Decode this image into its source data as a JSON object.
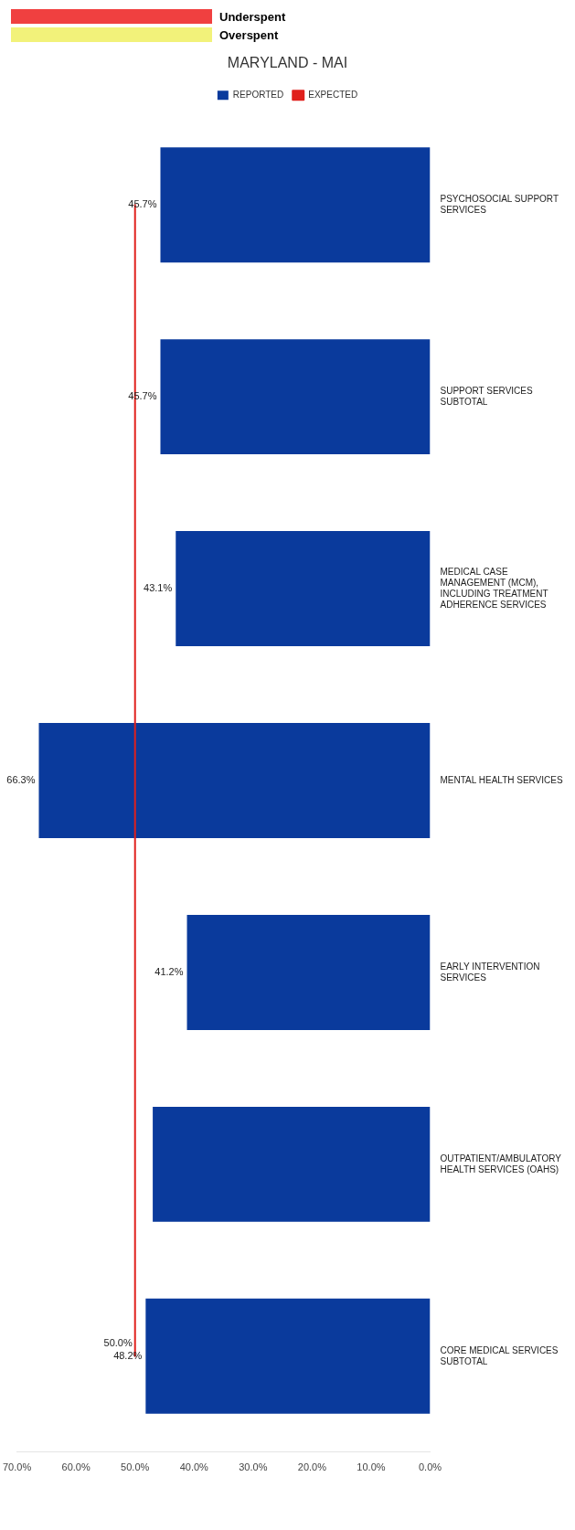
{
  "chart_data": {
    "type": "bar",
    "orientation": "horizontal",
    "title": "MARYLAND - MAI",
    "categories": [
      "PSYCHOSOCIAL SUPPORT SERVICES",
      "SUPPORT SERVICES SUBTOTAL",
      "MEDICAL CASE MANAGEMENT (MCM), INCLUDING TREATMENT ADHERENCE SERVICES",
      "MENTAL HEALTH SERVICES",
      "EARLY INTERVENTION SERVICES",
      "OUTPATIENT/AMBULATORY HEALTH SERVICES (OAHS)",
      "CORE MEDICAL SERVICES SUBTOTAL"
    ],
    "series": [
      {
        "name": "REPORTED",
        "type": "bar",
        "color": "#0a3a9c",
        "values": [
          45.7,
          45.7,
          43.1,
          66.3,
          41.2,
          47.0,
          48.2
        ],
        "value_labels": [
          "45.7%",
          "45.7%",
          "43.1%",
          "66.3%",
          "41.2%",
          null,
          "48.2%"
        ]
      },
      {
        "name": "EXPECTED",
        "type": "line",
        "color": "#e0201c",
        "values": [
          50,
          50,
          50,
          50,
          50,
          50,
          50
        ],
        "value_labels": [
          null,
          null,
          null,
          null,
          null,
          null,
          "50.0%"
        ]
      }
    ],
    "xlim": [
      70,
      0
    ],
    "xticks": [
      {
        "value": 70,
        "label": "70.0%"
      },
      {
        "value": 60,
        "label": "60.0%"
      },
      {
        "value": 50,
        "label": "50.0%"
      },
      {
        "value": 40,
        "label": "40.0%"
      },
      {
        "value": 30,
        "label": "30.0%"
      },
      {
        "value": 20,
        "label": "20.0%"
      },
      {
        "value": 10,
        "label": "10.0%"
      },
      {
        "value": 0,
        "label": "0.0%"
      }
    ],
    "legend": "top",
    "grid": false,
    "marker": "none",
    "annotations": [
      "Underspent",
      "Overspent"
    ]
  }
}
